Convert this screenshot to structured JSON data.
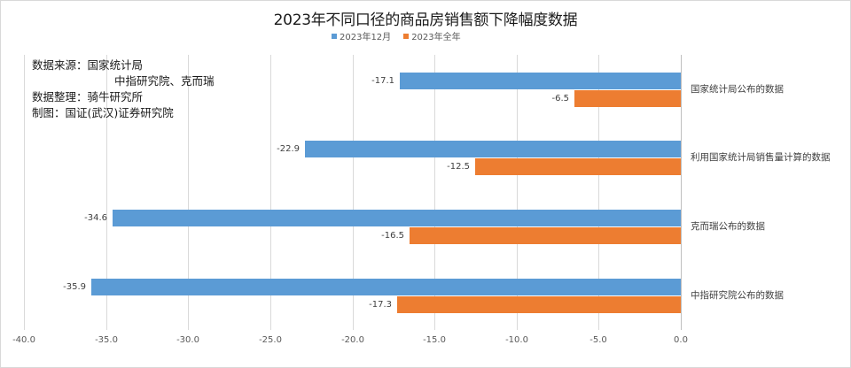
{
  "chart_data": {
    "type": "bar",
    "orientation": "horizontal",
    "title": "2023年不同口径的商品房销售额下降幅度数据",
    "categories": [
      "国家统计局公布的数据",
      "利用国家统计局销售量计算的数据",
      "克而瑞公布的数据",
      "中指研究院公布的数据"
    ],
    "series": [
      {
        "name": "2023年12月",
        "color": "#5b9bd5",
        "values": [
          -17.1,
          -22.9,
          -34.6,
          -35.9
        ]
      },
      {
        "name": "2023年全年",
        "color": "#ed7d31",
        "values": [
          -6.5,
          -12.5,
          -16.5,
          -17.3
        ]
      }
    ],
    "value_labels": {
      "s0": [
        "-17.1",
        "-22.9",
        "-34.6",
        "-35.9"
      ],
      "s1": [
        "-6.5",
        "-12.5",
        "-16.5",
        "-17.3"
      ]
    },
    "xlabel": "",
    "ylabel": "",
    "xlim": [
      -40.0,
      0.0
    ],
    "xticks": [
      "-40.0",
      "-35.0",
      "-30.0",
      "-25.0",
      "-20.0",
      "-15.0",
      "-10.0",
      "-5.0",
      "0.0"
    ],
    "grid": true,
    "legend_position": "top",
    "annotations": [
      "数据来源：国家统计局",
      "中指研究院、克而瑞",
      "数据整理：骑牛研究所",
      "制图：国证(武汉)证券研究院"
    ]
  },
  "legend": [
    {
      "label": "2023年12月",
      "color": "#5b9bd5"
    },
    {
      "label": "2023年全年",
      "color": "#ed7d31"
    }
  ],
  "notes": {
    "line1": "数据来源：国家统计局",
    "line2": "中指研究院、克而瑞",
    "line3": "数据整理：骑牛研究所",
    "line4": "制图：国证(武汉)证券研究院"
  }
}
